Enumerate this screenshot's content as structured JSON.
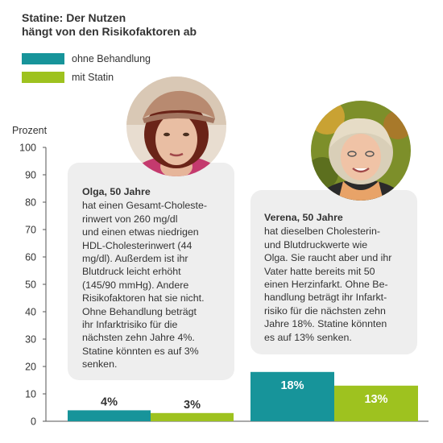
{
  "title": {
    "line1": "Statine: Der Nutzen",
    "line2": "hängt von den Risikofaktoren ab"
  },
  "legend": [
    {
      "label": "ohne Behandlung",
      "color": "#17949a"
    },
    {
      "label": "mit Statin",
      "color": "#9ec21f"
    }
  ],
  "colors": {
    "teal": "#17949a",
    "green": "#9ec21f",
    "card": "#eeeeee"
  },
  "persons": [
    {
      "name": "Olga, 50 Jahre",
      "lines": [
        "hat einen Gesamt-Choleste-",
        "rinwert von 260 mg/dl",
        "und einen etwas niedrigen",
        "HDL-Cholesterinwert (44",
        "mg/dl). Außerdem ist ihr",
        "Blutdruck leicht erhöht",
        "(145/90 mmHg). Andere",
        "Risikofaktoren hat sie nicht.",
        "Ohne Behandlung beträgt",
        "ihr Infarktrisiko für die",
        "nächsten zehn Jahre 4%.",
        "Statine könnten es auf 3%",
        "senken."
      ],
      "photo_icon": "portrait-woman-red-hair-beret"
    },
    {
      "name": "Verena, 50 Jahre",
      "lines": [
        "hat dieselben Cholesterin-",
        "und Blutdruckwerte wie",
        "Olga. Sie raucht aber und ihr",
        "Vater hatte bereits mit 50",
        "einen Herzinfarkt. Ohne Be-",
        "handlung beträgt ihr Infarkt-",
        "risiko für die nächsten zehn",
        "Jahre 18%. Statine könnten",
        "es auf 13% senken."
      ],
      "photo_icon": "portrait-woman-blonde-hair-scarf"
    }
  ],
  "chart_data": {
    "type": "bar",
    "ylabel": "Prozent",
    "ylim": [
      0,
      100
    ],
    "yticks": [
      0,
      10,
      20,
      30,
      40,
      50,
      60,
      70,
      80,
      90,
      100
    ],
    "categories": [
      "Olga, 50 Jahre",
      "Verena, 50 Jahre"
    ],
    "series": [
      {
        "name": "ohne Behandlung",
        "values": [
          4,
          18
        ],
        "labels": [
          "4%",
          "18%"
        ]
      },
      {
        "name": "mit Statin",
        "values": [
          3,
          13
        ],
        "labels": [
          "3%",
          "13%"
        ]
      }
    ],
    "grid": false,
    "legend_position": "top-left"
  }
}
